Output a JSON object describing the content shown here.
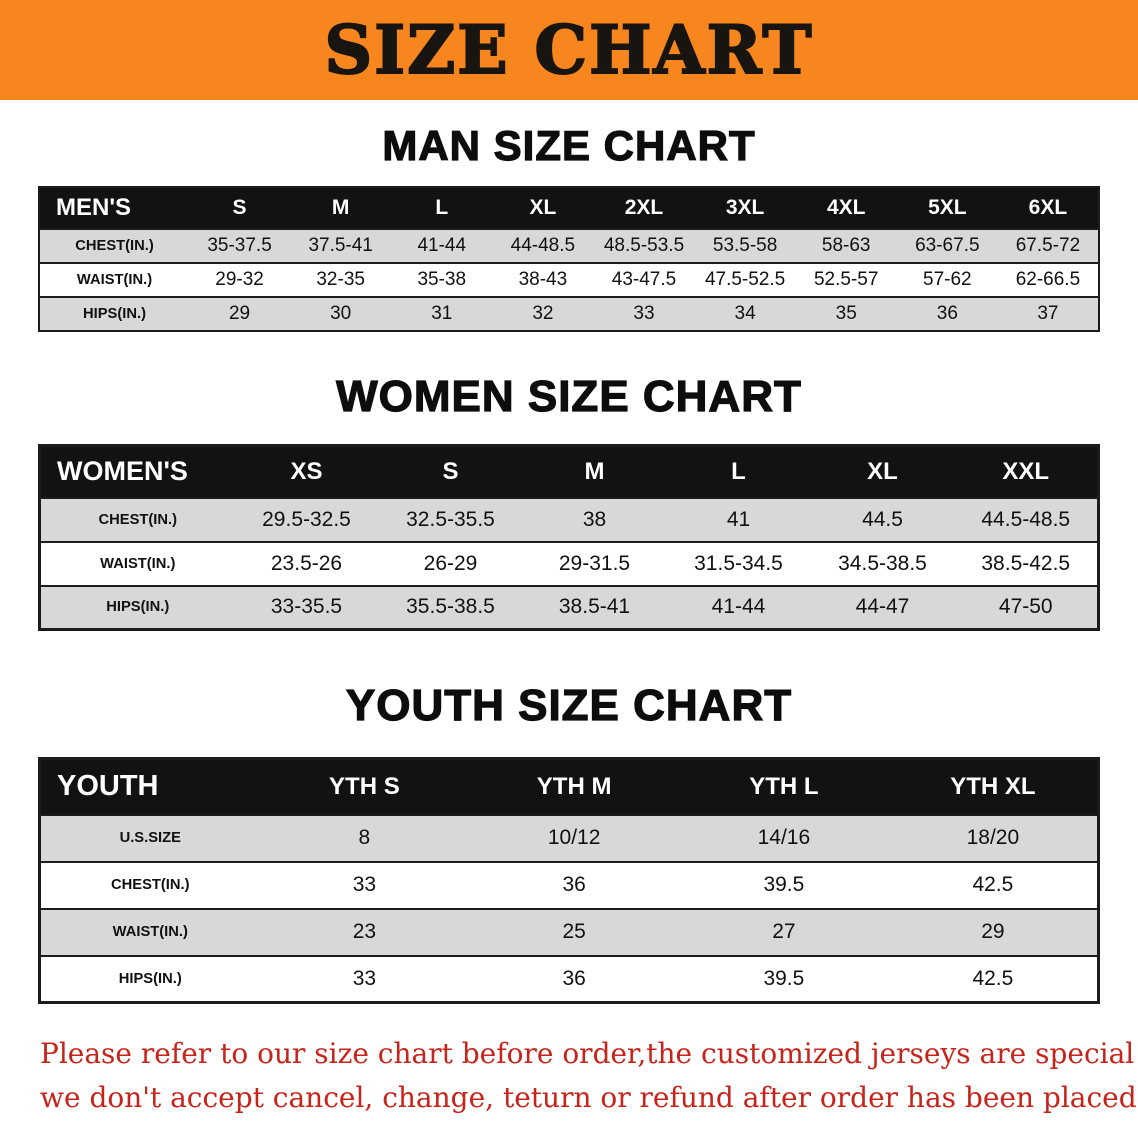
{
  "banner": {
    "title": "SIZE CHART"
  },
  "colors": {
    "banner_bg": "#F6861D",
    "header_bg": "#121212",
    "row_shade": "#d8d8d8",
    "footer_text": "#c8231a"
  },
  "chart_data": [
    {
      "type": "table",
      "title": "MAN SIZE CHART",
      "corner_label": "MEN'S",
      "columns": [
        "S",
        "M",
        "L",
        "XL",
        "2XL",
        "3XL",
        "4XL",
        "5XL",
        "6XL"
      ],
      "rows": [
        {
          "label": "CHEST(IN.)",
          "values": [
            "35-37.5",
            "37.5-41",
            "41-44",
            "44-48.5",
            "48.5-53.5",
            "53.5-58",
            "58-63",
            "63-67.5",
            "67.5-72"
          ]
        },
        {
          "label": "WAIST(IN.)",
          "values": [
            "29-32",
            "32-35",
            "35-38",
            "38-43",
            "43-47.5",
            "47.5-52.5",
            "52.5-57",
            "57-62",
            "62-66.5"
          ]
        },
        {
          "label": "HIPS(IN.)",
          "values": [
            "29",
            "30",
            "31",
            "32",
            "33",
            "34",
            "35",
            "36",
            "37"
          ]
        }
      ]
    },
    {
      "type": "table",
      "title": "WOMEN SIZE CHART",
      "corner_label": "WOMEN'S",
      "columns": [
        "XS",
        "S",
        "M",
        "L",
        "XL",
        "XXL"
      ],
      "rows": [
        {
          "label": "CHEST(IN.)",
          "values": [
            "29.5-32.5",
            "32.5-35.5",
            "38",
            "41",
            "44.5",
            "44.5-48.5"
          ]
        },
        {
          "label": "WAIST(IN.)",
          "values": [
            "23.5-26",
            "26-29",
            "29-31.5",
            "31.5-34.5",
            "34.5-38.5",
            "38.5-42.5"
          ]
        },
        {
          "label": "HIPS(IN.)",
          "values": [
            "33-35.5",
            "35.5-38.5",
            "38.5-41",
            "41-44",
            "44-47",
            "47-50"
          ]
        }
      ]
    },
    {
      "type": "table",
      "title": "YOUTH SIZE CHART",
      "corner_label": "YOUTH",
      "columns": [
        "YTH S",
        "YTH M",
        "YTH L",
        "YTH XL"
      ],
      "rows": [
        {
          "label": "U.S.SIZE",
          "values": [
            "8",
            "10/12",
            "14/16",
            "18/20"
          ]
        },
        {
          "label": "CHEST(IN.)",
          "values": [
            "33",
            "36",
            "39.5",
            "42.5"
          ]
        },
        {
          "label": "WAIST(IN.)",
          "values": [
            "23",
            "25",
            "27",
            "29"
          ]
        },
        {
          "label": "HIPS(IN.)",
          "values": [
            "33",
            "36",
            "39.5",
            "42.5"
          ]
        }
      ]
    }
  ],
  "footer": {
    "line1": "Please refer to our size chart before order,the customized jerseys are special products,",
    "line2": "we don't accept cancel, change, teturn or refund after order has been placed!"
  }
}
